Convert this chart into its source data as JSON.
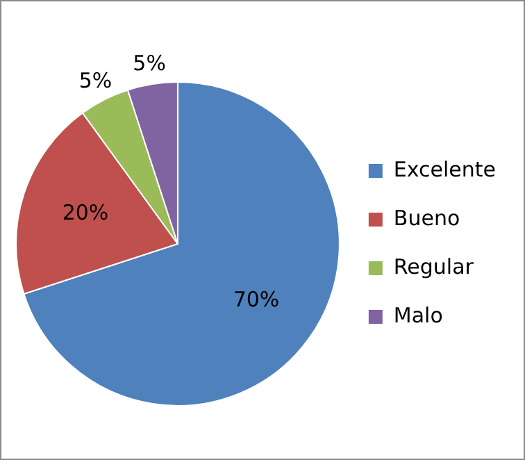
{
  "chart_data": {
    "type": "pie",
    "categories": [
      "Excelente",
      "Bueno",
      "Regular",
      "Malo"
    ],
    "values": [
      70,
      20,
      5,
      5
    ],
    "colors": [
      "#4f81bd",
      "#c0504d",
      "#9bbb59",
      "#8064a2"
    ],
    "value_labels": [
      "70%",
      "20%",
      "5%",
      "5%"
    ],
    "legend": "right"
  }
}
